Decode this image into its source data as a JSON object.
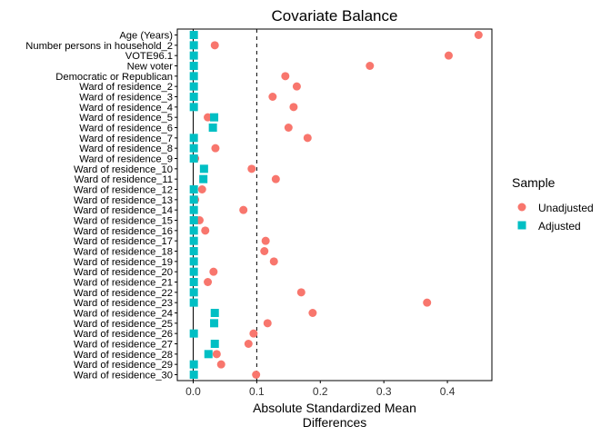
{
  "chart_data": {
    "type": "scatter",
    "title": "Covariate Balance",
    "xlabel": [
      "Absolute Standardized Mean",
      "Differences"
    ],
    "ylabel": "",
    "xlim": [
      -0.025,
      0.47
    ],
    "x_ticks": [
      0.0,
      0.1,
      0.2,
      0.3,
      0.4
    ],
    "x_tick_labels": [
      "0.0",
      "0.1",
      "0.2",
      "0.3",
      "0.4"
    ],
    "threshold": 0.1,
    "grid": false,
    "legend": {
      "title": "Sample",
      "position": "right"
    },
    "categories": [
      "Age (Years)",
      "Number persons in household_2",
      "VOTE96.1",
      "New voter",
      "Democratic or Republican",
      "Ward of residence_2",
      "Ward of residence_3",
      "Ward of residence_4",
      "Ward of residence_5",
      "Ward of residence_6",
      "Ward of residence_7",
      "Ward of residence_8",
      "Ward of residence_9",
      "Ward of residence_10",
      "Ward of residence_11",
      "Ward of residence_12",
      "Ward of residence_13",
      "Ward of residence_14",
      "Ward of residence_15",
      "Ward of residence_16",
      "Ward of residence_17",
      "Ward of residence_18",
      "Ward of residence_19",
      "Ward of residence_20",
      "Ward of residence_21",
      "Ward of residence_22",
      "Ward of residence_23",
      "Ward of residence_24",
      "Ward of residence_25",
      "Ward of residence_26",
      "Ward of residence_27",
      "Ward of residence_28",
      "Ward of residence_29",
      "Ward of residence_30"
    ],
    "series": [
      {
        "name": "Unadjusted",
        "color": "#F8766D",
        "shape": "circle",
        "values": [
          0.449,
          0.034,
          0.402,
          0.278,
          0.145,
          0.163,
          0.125,
          0.158,
          0.023,
          0.15,
          0.18,
          0.035,
          0.003,
          0.092,
          0.13,
          0.014,
          0.003,
          0.079,
          0.01,
          0.019,
          0.114,
          0.112,
          0.127,
          0.032,
          0.023,
          0.17,
          0.368,
          0.188,
          0.117,
          0.095,
          0.087,
          0.037,
          0.044,
          0.099
        ]
      },
      {
        "name": "Adjusted",
        "color": "#00BFC4",
        "shape": "square",
        "values": [
          0.001,
          0.001,
          0.001,
          0.001,
          0.001,
          0.001,
          0.001,
          0.001,
          0.033,
          0.031,
          0.001,
          0.001,
          0.001,
          0.017,
          0.016,
          0.001,
          0.001,
          0.001,
          0.001,
          0.001,
          0.001,
          0.001,
          0.001,
          0.001,
          0.001,
          0.001,
          0.001,
          0.034,
          0.033,
          0.001,
          0.034,
          0.024,
          0.001,
          0.001
        ]
      }
    ]
  }
}
